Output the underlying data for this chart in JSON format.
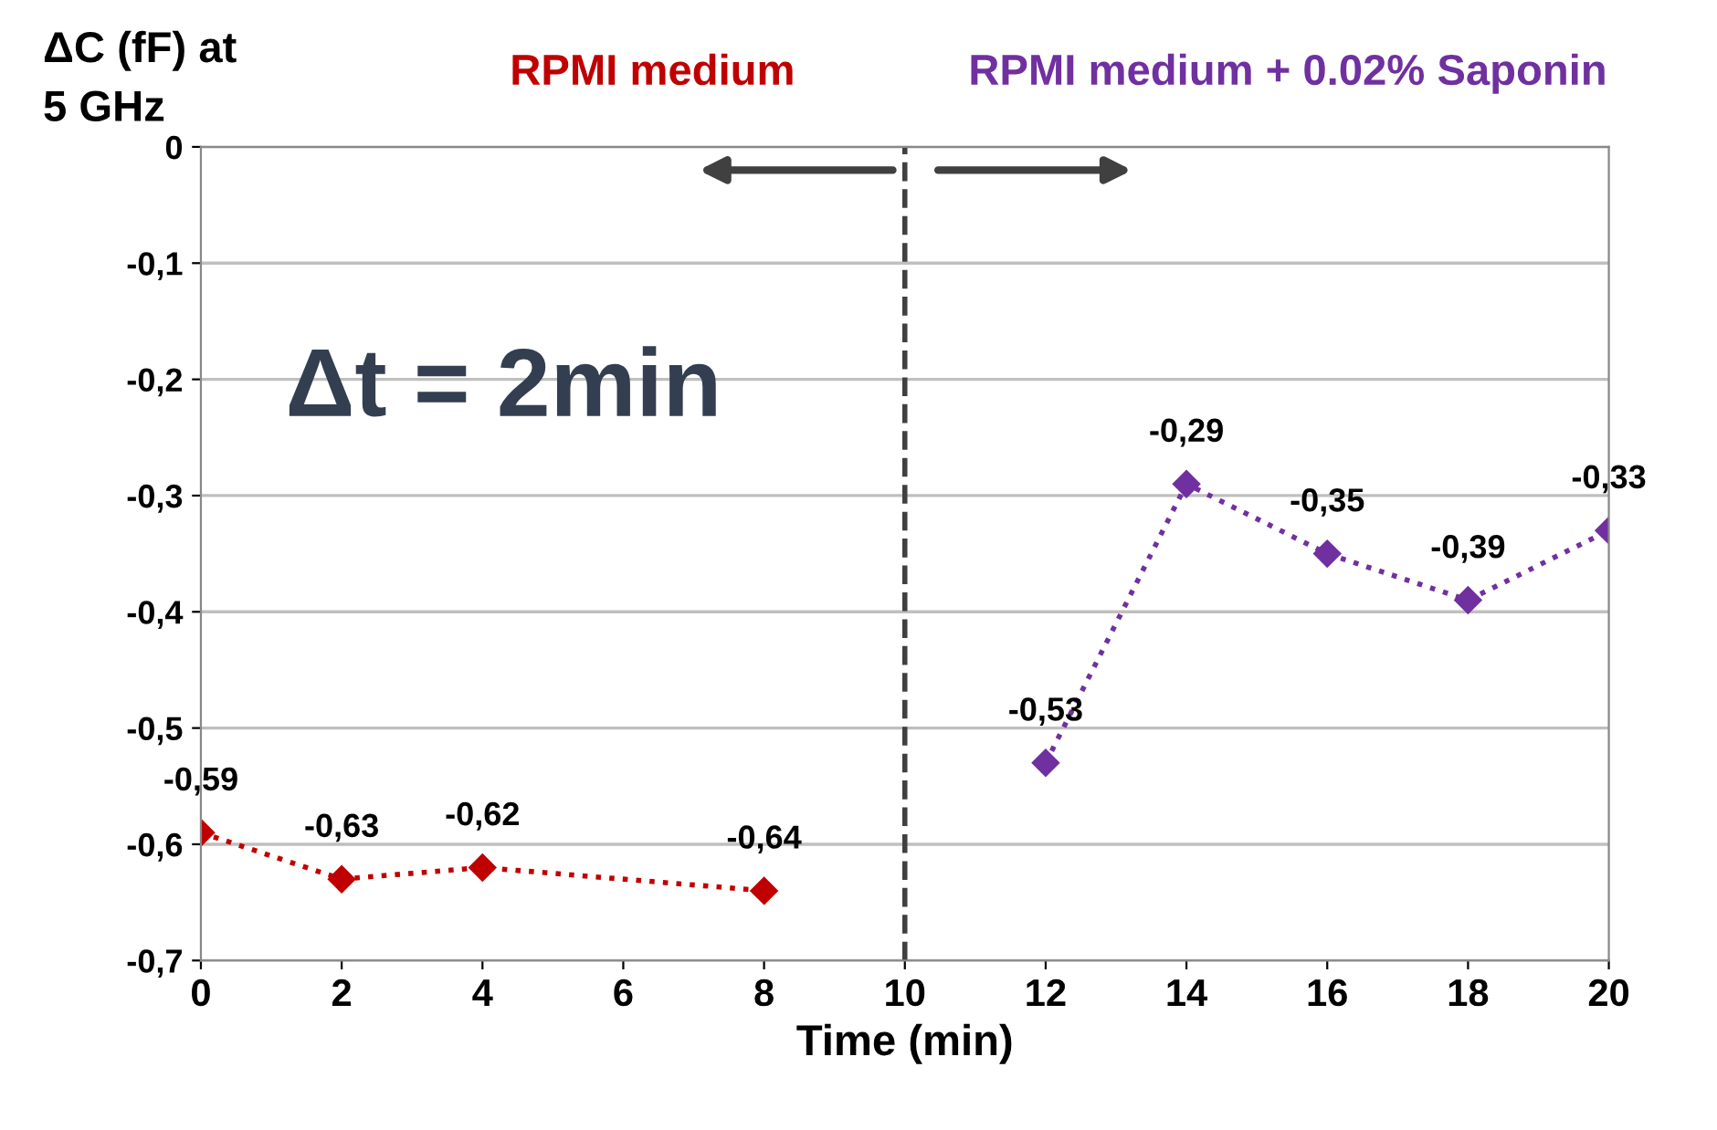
{
  "chart_data": {
    "type": "line",
    "xlabel": "Time (min)",
    "ylabel": "ΔC (fF) at\n5 GHz",
    "series": [
      {
        "name": null,
        "color": "#c00000",
        "x": [
          0,
          2,
          4,
          8
        ],
        "values": [
          -0.59,
          -0.63,
          -0.62,
          -0.64
        ],
        "value_labels": [
          "-0,59",
          "-0,63",
          "-0,62",
          "-0,64"
        ]
      },
      {
        "name": null,
        "color": "#7030a0",
        "x": [
          12,
          14,
          16,
          18,
          20
        ],
        "values": [
          -0.53,
          -0.29,
          -0.35,
          -0.39,
          -0.33
        ],
        "value_labels": [
          "-0,53",
          "-0,29",
          "-0,35",
          "-0,39",
          "-0,33"
        ]
      }
    ],
    "marker": "diamond",
    "line_style": "dotted",
    "xlim": [
      0,
      20
    ],
    "xticks": [
      0,
      2,
      4,
      6,
      8,
      10,
      12,
      14,
      16,
      18,
      20
    ],
    "ylim": [
      -0.7,
      0
    ],
    "yticks": [
      {
        "value": -0.7,
        "label": "-0,7"
      },
      {
        "value": -0.6,
        "label": "-0,6"
      },
      {
        "value": -0.5,
        "label": "-0,5"
      },
      {
        "value": -0.4,
        "label": "-0,4"
      },
      {
        "value": -0.3,
        "label": "-0,3"
      },
      {
        "value": -0.2,
        "label": "-0,2"
      },
      {
        "value": -0.1,
        "label": "-0,1"
      },
      0
    ],
    "grid": "y",
    "ref_lines": [
      {
        "axis": "x",
        "value": 10,
        "label": null,
        "line_style": "dashed",
        "color": "#404040"
      }
    ],
    "annotations": [
      "RPMI medium",
      "RPMI medium + 0.02% Saponin",
      "Δt = 2min"
    ]
  }
}
